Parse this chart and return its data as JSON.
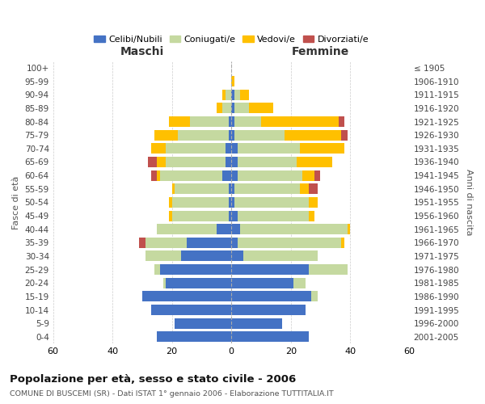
{
  "age_groups": [
    "0-4",
    "5-9",
    "10-14",
    "15-19",
    "20-24",
    "25-29",
    "30-34",
    "35-39",
    "40-44",
    "45-49",
    "50-54",
    "55-59",
    "60-64",
    "65-69",
    "70-74",
    "75-79",
    "80-84",
    "85-89",
    "90-94",
    "95-99",
    "100+"
  ],
  "birth_years": [
    "2001-2005",
    "1996-2000",
    "1991-1995",
    "1986-1990",
    "1981-1985",
    "1976-1980",
    "1971-1975",
    "1966-1970",
    "1961-1965",
    "1956-1960",
    "1951-1955",
    "1946-1950",
    "1941-1945",
    "1936-1940",
    "1931-1935",
    "1926-1930",
    "1921-1925",
    "1916-1920",
    "1911-1915",
    "1906-1910",
    "≤ 1905"
  ],
  "males": {
    "celibi": [
      25,
      19,
      27,
      30,
      22,
      24,
      17,
      15,
      5,
      1,
      1,
      1,
      3,
      2,
      2,
      1,
      1,
      0,
      0,
      0,
      0
    ],
    "coniugati": [
      0,
      0,
      0,
      0,
      1,
      2,
      12,
      14,
      20,
      19,
      19,
      18,
      21,
      20,
      20,
      17,
      13,
      3,
      2,
      0,
      0
    ],
    "vedovi": [
      0,
      0,
      0,
      0,
      0,
      0,
      0,
      0,
      0,
      1,
      1,
      1,
      1,
      3,
      5,
      8,
      7,
      2,
      1,
      0,
      0
    ],
    "divorziati": [
      0,
      0,
      0,
      0,
      0,
      0,
      0,
      2,
      0,
      0,
      0,
      0,
      2,
      3,
      0,
      0,
      0,
      0,
      0,
      0,
      0
    ]
  },
  "females": {
    "nubili": [
      26,
      17,
      25,
      27,
      21,
      26,
      4,
      2,
      3,
      2,
      1,
      1,
      2,
      2,
      2,
      1,
      1,
      1,
      1,
      0,
      0
    ],
    "coniugate": [
      0,
      0,
      0,
      2,
      4,
      13,
      25,
      35,
      36,
      24,
      25,
      22,
      22,
      20,
      21,
      17,
      9,
      5,
      2,
      0,
      0
    ],
    "vedove": [
      0,
      0,
      0,
      0,
      0,
      0,
      0,
      1,
      1,
      2,
      3,
      3,
      4,
      12,
      15,
      19,
      26,
      8,
      3,
      1,
      0
    ],
    "divorziate": [
      0,
      0,
      0,
      0,
      0,
      0,
      0,
      0,
      0,
      0,
      0,
      3,
      2,
      0,
      0,
      2,
      2,
      0,
      0,
      0,
      0
    ]
  },
  "colors": {
    "celibi": "#4472c4",
    "coniugati": "#c5d9a0",
    "vedovi": "#ffc000",
    "divorziati": "#c0504d"
  },
  "title": "Popolazione per età, sesso e stato civile - 2006",
  "subtitle": "COMUNE DI BUSCEMI (SR) - Dati ISTAT 1° gennaio 2006 - Elaborazione TUTTITALIA.IT",
  "xlabel_left": "Maschi",
  "xlabel_right": "Femmine",
  "ylabel_left": "Fasce di età",
  "ylabel_right": "Anni di nascita",
  "xlim": 60,
  "bg_color": "#ffffff",
  "grid_color": "#cccccc",
  "legend_labels": [
    "Celibi/Nubili",
    "Coniugati/e",
    "Vedovi/e",
    "Divorziati/e"
  ]
}
